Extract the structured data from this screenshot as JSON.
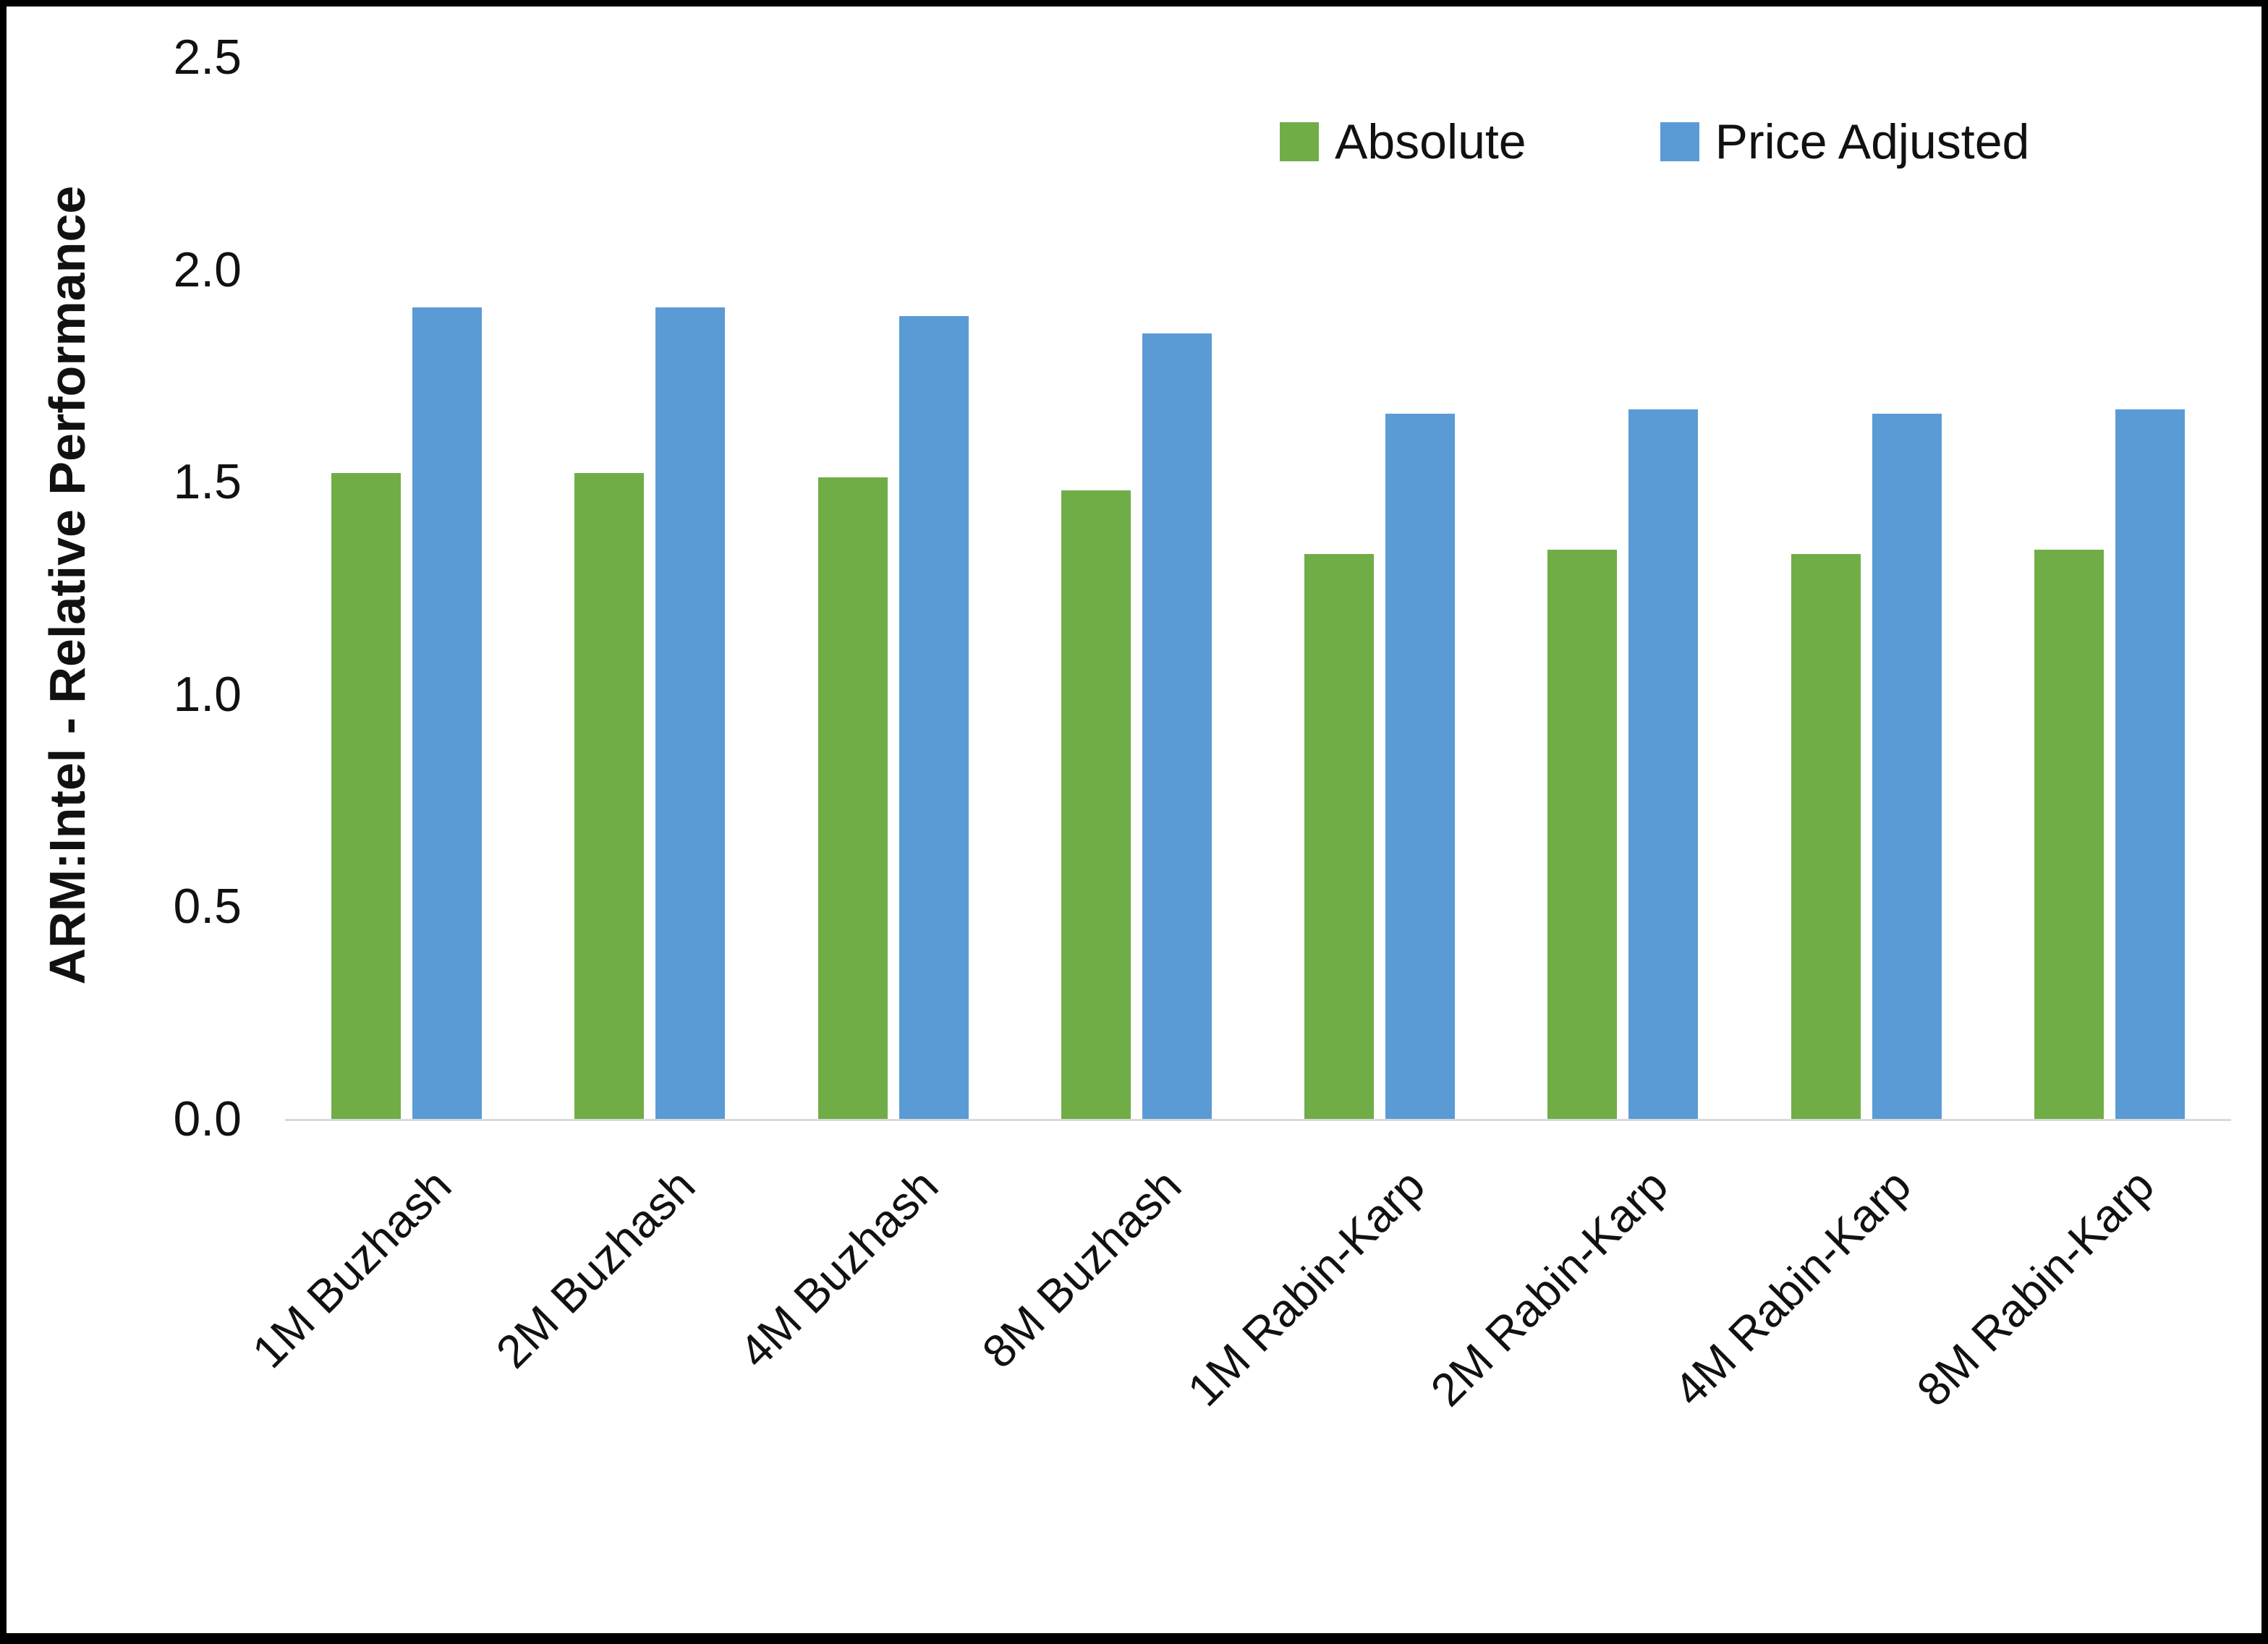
{
  "chart_data": {
    "type": "bar",
    "categories": [
      "1M Buzhash",
      "2M Buzhash",
      "4M Buzhash",
      "8M Buzhash",
      "1M Rabin-Karp",
      "2M Rabin-Karp",
      "4M Rabin-Karp",
      "8M Rabin-Karp"
    ],
    "series": [
      {
        "name": "Absolute",
        "color": "#70AD47",
        "values": [
          1.52,
          1.52,
          1.51,
          1.48,
          1.33,
          1.34,
          1.33,
          1.34
        ]
      },
      {
        "name": "Price Adjusted",
        "color": "#5B9BD5",
        "values": [
          1.91,
          1.91,
          1.89,
          1.85,
          1.66,
          1.67,
          1.66,
          1.67
        ]
      }
    ],
    "title": "",
    "xlabel": "",
    "ylabel": "ARM:Intel - Relative Performance",
    "ylim": [
      0,
      2.5
    ],
    "yticks": [
      0.0,
      0.5,
      1.0,
      1.5,
      2.0,
      2.5
    ],
    "ytick_labels": [
      "0.0",
      "0.5",
      "1.0",
      "1.5",
      "2.0",
      "2.5"
    ],
    "grid": false,
    "legend_position": "top-right"
  }
}
